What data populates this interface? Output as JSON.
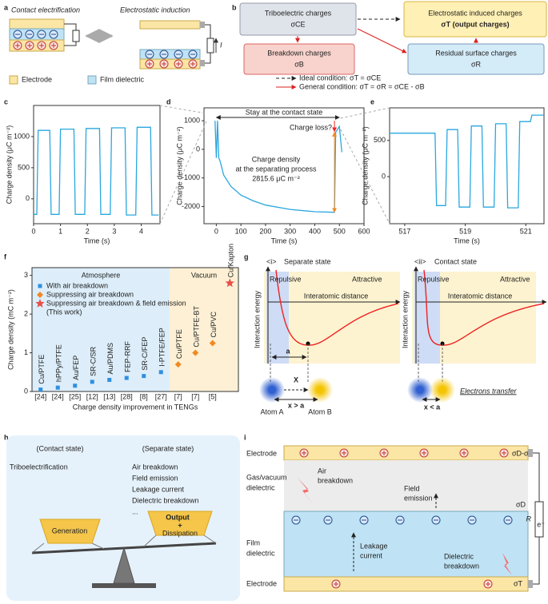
{
  "panels": {
    "a": {
      "label": "a",
      "left_title": "Contact electrification",
      "right_title": "Electrostatic induction",
      "current": "I",
      "legend": [
        "Electrode",
        "Film dielectric"
      ]
    },
    "b": {
      "label": "b",
      "boxes": [
        [
          "Triboelectric charges",
          "σCE"
        ],
        [
          "Electrostatic induced charges",
          "σT (output charges)"
        ],
        [
          "Breakdown charges",
          "σB"
        ],
        [
          "Residual surface charges",
          "σR"
        ]
      ],
      "conditions": [
        "Ideal condition: σT = σCE",
        "General condition: σT = σR = σCE - σB"
      ]
    },
    "g": {
      "label": "g",
      "left": {
        "index": "<i>",
        "title": "Separate state",
        "distance": "x > a",
        "atoms": [
          "Atom A",
          "Atom B"
        ],
        "gap": "a",
        "cross": "X"
      },
      "right": {
        "index": "<ii>",
        "title": "Contact state",
        "distance": "x < a",
        "transfer": "Electrons transfer"
      },
      "repulsive": "Repulsive",
      "attractive": "Attractive",
      "x_axis": "Interatomic distance",
      "y_axis": "Interaction energy"
    },
    "h": {
      "label": "h",
      "contact": "(Contact state)",
      "separate": "(Separate state)",
      "generation_item": "Triboelectrification",
      "dissipation_items": [
        "Air breakdown",
        "Field emission",
        "Leakage current",
        "Dielectric breakdown",
        "..."
      ],
      "generation": "Generation",
      "output": "Output",
      "plus": "+",
      "dissipation": "Dissipation"
    },
    "i": {
      "label": "i",
      "layers": [
        [
          "Electrode"
        ],
        [
          "Gas/vacuum",
          "dielectric"
        ],
        [
          "Film",
          "dielectric"
        ],
        [
          "Electrode"
        ]
      ],
      "air": [
        "Air",
        "breakdown"
      ],
      "field": [
        "Field",
        "emission"
      ],
      "leakage": [
        "Leakage",
        "current"
      ],
      "dielectric": [
        "Dielectric",
        "breakdown"
      ],
      "top_charge": "σD-σT",
      "surface_charge": "σD",
      "bottom_charge": "σT",
      "resistor": "R",
      "electron": "e⁻"
    }
  },
  "chart_data": [
    {
      "type": "line",
      "label": "c",
      "x": [
        0,
        0.12,
        0.17,
        0.6,
        0.65,
        0.95,
        1.0,
        1.5,
        1.55,
        1.9,
        1.95,
        2.45,
        2.5,
        2.85,
        2.9,
        3.4,
        3.45,
        3.8,
        3.85,
        4.35,
        4.4,
        4.65
      ],
      "values": [
        -250,
        -250,
        1100,
        1100,
        -250,
        -250,
        1120,
        1120,
        -250,
        -250,
        1130,
        1130,
        -250,
        -250,
        1140,
        1140,
        -260,
        -260,
        1150,
        1150,
        -260,
        -260
      ],
      "color": "#2aa7df",
      "xlim": [
        0,
        4.7
      ],
      "xticks": [
        0,
        1,
        2,
        3,
        4
      ],
      "ylim": [
        -400,
        1500
      ],
      "yticks": [
        0,
        500,
        1000
      ],
      "xlabel": "Time (s)",
      "ylabel": "Charge density (μC m⁻²)"
    },
    {
      "type": "line",
      "label": "d",
      "x": [
        -5,
        0,
        5,
        10,
        15,
        30,
        60,
        100,
        150,
        200,
        300,
        400,
        480,
        485,
        500,
        510
      ],
      "values": [
        1000,
        -300,
        1000,
        -300,
        -400,
        -900,
        -1300,
        -1600,
        -1800,
        -1950,
        -2100,
        -2180,
        -2200,
        600,
        800,
        -100
      ],
      "color": "#2aa7df",
      "xlim": [
        -50,
        600
      ],
      "xticks": [
        0,
        100,
        200,
        300,
        400,
        500,
        600
      ],
      "ylim": [
        -2600,
        1450
      ],
      "yticks": [
        -2000,
        -1000,
        0,
        1000
      ],
      "xlabel": "Time (s)",
      "ylabel": "Charge density (μC m⁻²)",
      "annotations": {
        "stay": "Stay at the contact state",
        "loss": "Charge loss?",
        "density": [
          "Charge density",
          "at the separating process",
          "2815.6 μC m⁻²"
        ]
      }
    },
    {
      "type": "line",
      "label": "e",
      "x": [
        516.5,
        518.0,
        518.05,
        518.35,
        518.4,
        518.75,
        518.8,
        519.15,
        519.2,
        519.55,
        519.6,
        519.95,
        520.0,
        520.35,
        520.4,
        520.75,
        520.8,
        521.15,
        521.2,
        521.6
      ],
      "values": [
        600,
        600,
        -400,
        -400,
        650,
        650,
        -420,
        -420,
        700,
        700,
        -420,
        -420,
        730,
        730,
        -430,
        -430,
        760,
        760,
        850,
        850
      ],
      "color": "#2aa7df",
      "xlim": [
        516.5,
        521.6
      ],
      "xticks": [
        517,
        519,
        521
      ],
      "ylim": [
        -650,
        950
      ],
      "yticks": [
        0,
        500
      ],
      "xlabel": "Time (s)",
      "ylabel": "Charge density (μC m⁻²)"
    },
    {
      "type": "scatter",
      "label": "f",
      "categories": [
        "[24]",
        "[24]",
        "[25]",
        "[12]",
        "[13]",
        "[28]",
        "[8]",
        "[27]",
        "[7]",
        "[7]",
        "[5]",
        null
      ],
      "point_labels": [
        "Cu/PTFE",
        "hPPy/PTFE",
        "Au/FEP",
        "SR-C/SR",
        "Au/PDMS",
        "FEP-RRF",
        "SR-C/FEP",
        "I-PTFE/FEP",
        "Cu/PTFE",
        "Cu/PTFE-BT",
        "Cu/PVC",
        "Cu/Kapton"
      ],
      "series": [
        {
          "name": "With air breakdown",
          "color": "#2f8fe0",
          "marker": "square",
          "values": [
            0.05,
            0.1,
            0.15,
            0.25,
            0.3,
            0.35,
            0.4,
            0.5,
            null,
            null,
            null,
            null
          ]
        },
        {
          "name": "Suppressing air breakdown",
          "color": "#f08a24",
          "marker": "diamond",
          "values": [
            null,
            null,
            null,
            null,
            null,
            null,
            null,
            null,
            0.7,
            1.0,
            1.25,
            null
          ]
        },
        {
          "name": "Suppressing air breakdown & field emission",
          "color": "#e8504a",
          "marker": "star",
          "values": [
            null,
            null,
            null,
            null,
            null,
            null,
            null,
            null,
            null,
            null,
            null,
            2.8
          ]
        }
      ],
      "legend_note": "(This work)",
      "regions": [
        {
          "name": "Atmosphere",
          "color": "#ddeefa"
        },
        {
          "name": "Vacuum",
          "color": "#fdf0d5"
        }
      ],
      "ylim": [
        0,
        3.2
      ],
      "yticks": [
        0,
        1,
        2,
        3
      ],
      "xlabel": "Charge density improvement in TENGs",
      "ylabel": "Charge density (mC m⁻²)"
    }
  ]
}
